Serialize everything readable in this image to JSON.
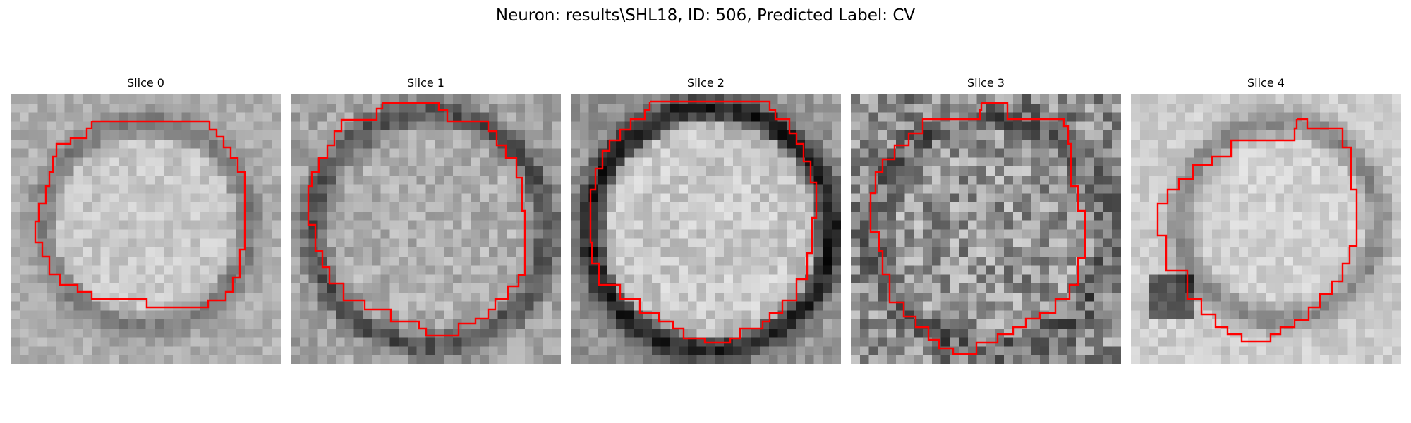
{
  "figure": {
    "title": "Neuron: results\\SHL18, ID: 506, Predicted Label: CV",
    "contour_color": "#ff0000"
  },
  "slices": [
    {
      "label": "Slice 0"
    },
    {
      "label": "Slice 1"
    },
    {
      "label": "Slice 2"
    },
    {
      "label": "Slice 3"
    },
    {
      "label": "Slice 4"
    }
  ]
}
